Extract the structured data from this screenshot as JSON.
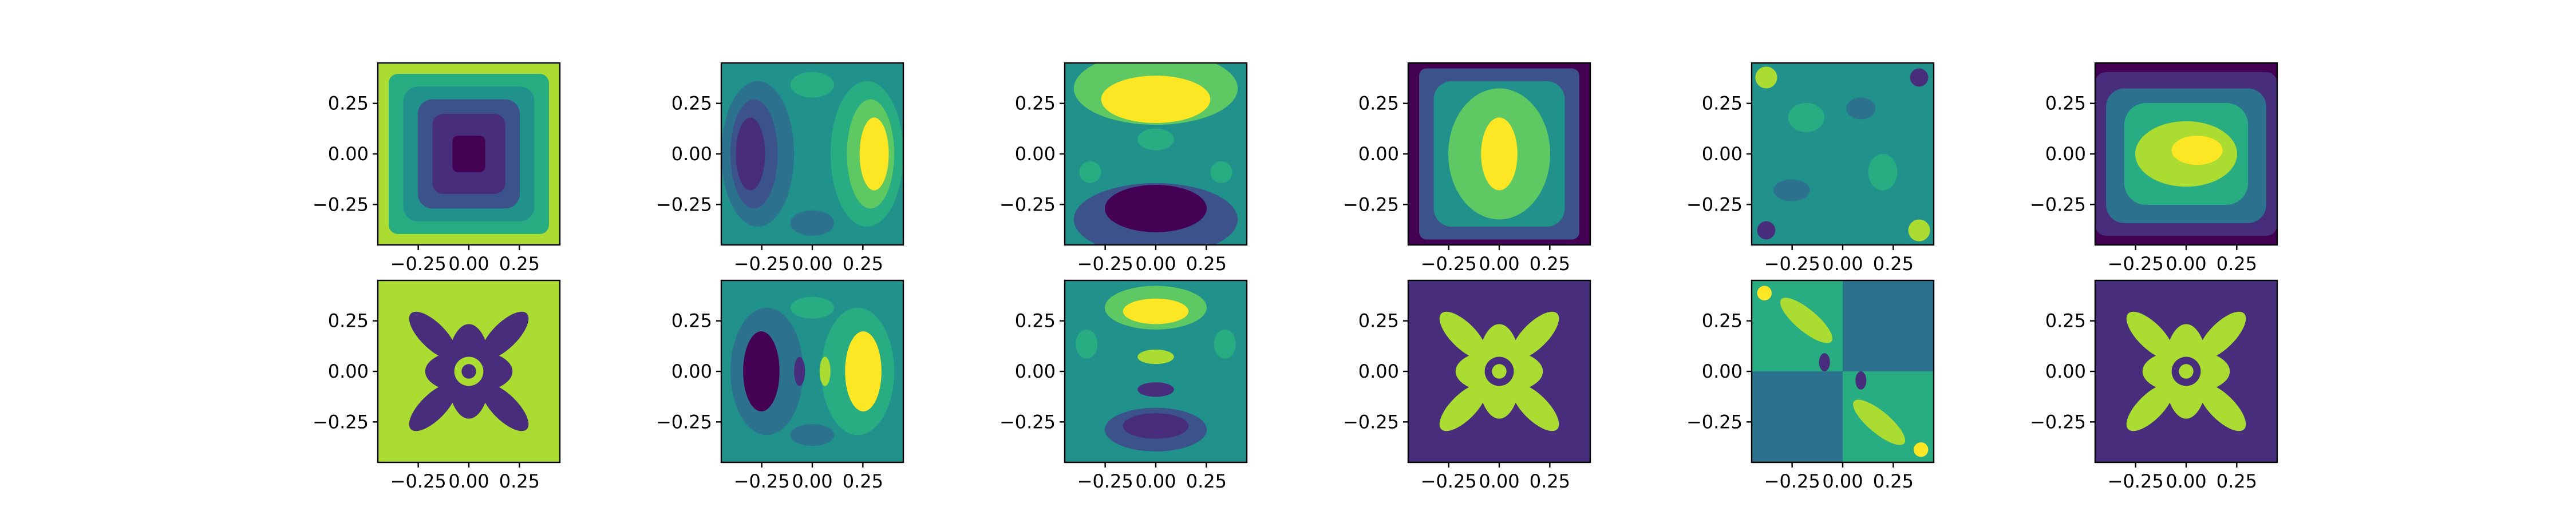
{
  "chart_data": {
    "type": "contour",
    "layout": {
      "rows": 2,
      "cols": 6
    },
    "colormap": "viridis",
    "colors": {
      "dark": "#440154",
      "indigo": "#472d7b",
      "blue": "#3b528b",
      "slate": "#2c728e",
      "teal": "#21918c",
      "green": "#27ad81",
      "lime": "#5ec962",
      "yellowgreen": "#aadc32",
      "yellow": "#fde725"
    },
    "xlim": [
      -0.45,
      0.45
    ],
    "ylim": [
      -0.45,
      0.45
    ],
    "xticks": [
      -0.25,
      0.0,
      0.25
    ],
    "xtick_labels": [
      "−0.25",
      "0.00",
      "0.25"
    ],
    "yticks": [
      -0.25,
      0.0,
      0.25
    ],
    "ytick_labels": [
      "−0.25",
      "0.00",
      "0.25"
    ],
    "panels": [
      {
        "row": 0,
        "col": 0,
        "pattern": "bowl"
      },
      {
        "row": 0,
        "col": 1,
        "pattern": "dipole-x"
      },
      {
        "row": 0,
        "col": 2,
        "pattern": "dipole-y"
      },
      {
        "row": 0,
        "col": 3,
        "pattern": "peak"
      },
      {
        "row": 0,
        "col": 4,
        "pattern": "corners"
      },
      {
        "row": 0,
        "col": 5,
        "pattern": "peak-soft"
      },
      {
        "row": 1,
        "col": 0,
        "pattern": "star-dark"
      },
      {
        "row": 1,
        "col": 1,
        "pattern": "dipole-x-fine"
      },
      {
        "row": 1,
        "col": 2,
        "pattern": "dipole-y-fine"
      },
      {
        "row": 1,
        "col": 3,
        "pattern": "star-light"
      },
      {
        "row": 1,
        "col": 4,
        "pattern": "quadrants"
      },
      {
        "row": 1,
        "col": 5,
        "pattern": "star-light"
      }
    ]
  }
}
